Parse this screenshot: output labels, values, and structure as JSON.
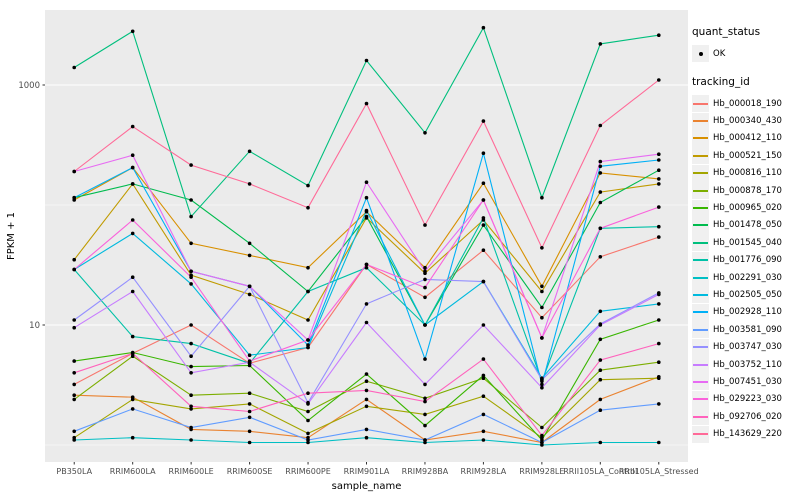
{
  "figure": {
    "background": "#FFFFFF",
    "panel_background": "#EBEBEB",
    "gridline_color": "#FFFFFF",
    "tick_label_color": "#4D4D4D",
    "point_color": "#000000"
  },
  "legend": {
    "quant_status_title": "quant_status",
    "quant_status_item": "OK",
    "tracking_title": "tracking_id"
  },
  "chart_data": {
    "type": "line",
    "title": "",
    "xlabel": "sample_name",
    "ylabel": "FPKM + 1",
    "y_scale": "log10",
    "y_ticks": [
      10,
      1000
    ],
    "y_minor_gridlines": [
      1,
      100
    ],
    "ylim": [
      0.75,
      4200
    ],
    "grid": "on",
    "legend_position": "right",
    "marker": "black point (quant_status OK)",
    "categories": [
      "PB350LA",
      "RRIM600LA",
      "RRIM600LE",
      "RRIM600SE",
      "RRIM600PE",
      "RRIM901LA",
      "RRIM928BA",
      "RRIM928LA",
      "RRIM928LE",
      "RRII105LA_Control",
      "RRII105LA_Stressed"
    ],
    "series": [
      {
        "name": "Hb_000018_190",
        "color": "#F8766D",
        "values": [
          3.2,
          5.8,
          10,
          4.8,
          6.5,
          32,
          17,
          42,
          11.5,
          37,
          54
        ]
      },
      {
        "name": "Hb_000340_430",
        "color": "#EA8331",
        "values": [
          2.6,
          2.5,
          1.35,
          1.3,
          1.15,
          2.4,
          1.1,
          1.3,
          1.05,
          2.4,
          3.7
        ]
      },
      {
        "name": "Hb_000412_110",
        "color": "#D89000",
        "values": [
          110,
          205,
          48,
          38,
          30,
          88,
          30,
          152,
          21,
          185,
          165
        ]
      },
      {
        "name": "Hb_000521_150",
        "color": "#C09B00",
        "values": [
          35,
          150,
          26,
          18,
          11,
          78,
          27,
          75,
          19,
          128,
          150
        ]
      },
      {
        "name": "Hb_000816_110",
        "color": "#A3A500",
        "values": [
          1.15,
          2.4,
          2.0,
          2.2,
          1.25,
          2.1,
          1.8,
          2.55,
          1.15,
          3.5,
          3.6
        ]
      },
      {
        "name": "Hb_000878_170",
        "color": "#7CAE00",
        "values": [
          2.4,
          5.5,
          2.6,
          2.7,
          1.9,
          3.4,
          2.45,
          3.6,
          1.4,
          4.2,
          4.9
        ]
      },
      {
        "name": "Hb_000965_020",
        "color": "#39B600",
        "values": [
          5.0,
          5.9,
          4.5,
          4.6,
          1.6,
          3.9,
          1.45,
          3.8,
          1.1,
          7.6,
          11
        ]
      },
      {
        "name": "Hb_001478_050",
        "color": "#00BB4E",
        "values": [
          115,
          150,
          110,
          48,
          19,
          80,
          10,
          68,
          14,
          105,
          195
        ]
      },
      {
        "name": "Hb_001545_040",
        "color": "#00BF7D",
        "values": [
          1400,
          2800,
          80,
          280,
          145,
          1600,
          400,
          3000,
          115,
          2200,
          2600
        ]
      },
      {
        "name": "Hb_001776_090",
        "color": "#00C1A7",
        "values": [
          29,
          8,
          7,
          4.8,
          19,
          30,
          10,
          78,
          3.4,
          64,
          66
        ]
      },
      {
        "name": "Hb_002291_030",
        "color": "#00BFC4",
        "values": [
          1.1,
          1.15,
          1.1,
          1.05,
          1.05,
          1.15,
          1.05,
          1.1,
          1.0,
          1.05,
          1.05
        ]
      },
      {
        "name": "Hb_002505_050",
        "color": "#00BADE",
        "values": [
          29,
          58,
          22,
          5.6,
          6.5,
          90,
          10,
          23,
          3.6,
          13,
          15
        ]
      },
      {
        "name": "Hb_002928_110",
        "color": "#00B0F6",
        "values": [
          115,
          205,
          28,
          21,
          6.8,
          115,
          5.2,
          270,
          3.2,
          210,
          237
        ]
      },
      {
        "name": "Hb_003581_090",
        "color": "#619CFF",
        "values": [
          1.3,
          2.0,
          1.4,
          1.7,
          1.1,
          1.35,
          1.1,
          1.8,
          1.05,
          1.95,
          2.2
        ]
      },
      {
        "name": "Hb_003747_030",
        "color": "#9590FF",
        "values": [
          11,
          25,
          5.5,
          21,
          2.25,
          15,
          24,
          23,
          3.5,
          10.2,
          18.5
        ]
      },
      {
        "name": "Hb_003752_110",
        "color": "#C77CFF",
        "values": [
          9.5,
          19,
          4.0,
          4.9,
          2.2,
          10.5,
          3.2,
          10,
          3.0,
          10.0,
          18
        ]
      },
      {
        "name": "Hb_007451_030",
        "color": "#E76BF3",
        "values": [
          190,
          260,
          28,
          21,
          7.5,
          155,
          28,
          110,
          7.8,
          230,
          265
        ]
      },
      {
        "name": "Hb_029223_030",
        "color": "#FA62DB",
        "values": [
          29,
          75,
          25,
          5,
          7.5,
          32,
          20.5,
          110,
          7.8,
          64,
          96
        ]
      },
      {
        "name": "Hb_092706_020",
        "color": "#FF62BC",
        "values": [
          4.0,
          5.8,
          2.1,
          1.9,
          2.7,
          2.85,
          2.3,
          5.2,
          1.2,
          5.1,
          7.0
        ]
      },
      {
        "name": "Hb_143629_220",
        "color": "#FF6A98",
        "values": [
          190,
          450,
          215,
          150,
          95,
          700,
          68,
          500,
          44,
          460,
          1100
        ]
      }
    ]
  }
}
